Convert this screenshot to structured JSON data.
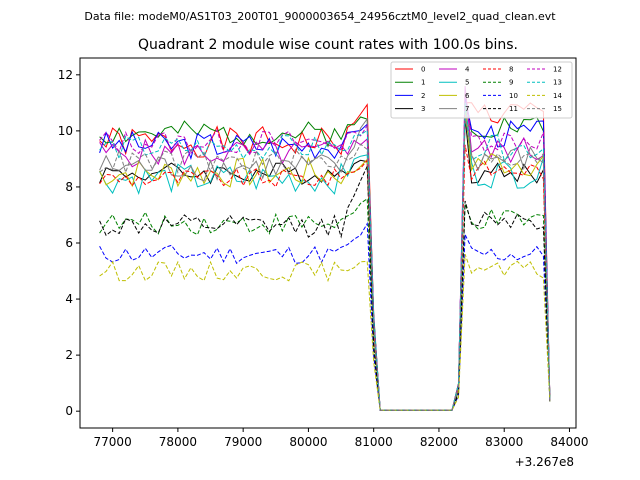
{
  "chart_data": {
    "type": "line",
    "suptitle": "Data file: modeM0/AS1T03_200T01_9000003654_24956cztM0_level2_quad_clean.evt",
    "title": "Quadrant 2 module wise count rates with 100.0s bins.",
    "xlabel": "",
    "ylabel": "",
    "x_offset_label": "+3.267e8",
    "xlim": [
      76500,
      84100
    ],
    "ylim": [
      -0.6,
      12.6
    ],
    "xticks": [
      77000,
      78000,
      79000,
      80000,
      81000,
      82000,
      83000,
      84000
    ],
    "yticks": [
      0,
      2,
      4,
      6,
      8,
      10,
      12
    ],
    "grid": false,
    "legend_position": "top-right",
    "legend_columns": 4,
    "x_segments": [
      {
        "start": 76800,
        "end": 80900,
        "step": 100
      },
      {
        "start": 81000,
        "end": 81100,
        "step": 100
      },
      {
        "start": 82200,
        "end": 82300,
        "step": 100
      },
      {
        "start": 82400,
        "end": 83700,
        "step": 100
      }
    ],
    "zero_gap": {
      "start": 81100,
      "end": 82200
    },
    "series": [
      {
        "name": "0",
        "color": "#ff0000",
        "dash": "solid",
        "base": 9.6,
        "seed": 1,
        "var": 0.55,
        "end_level": 11.2,
        "peak": 11.0,
        "post": 10.6
      },
      {
        "name": "1",
        "color": "#008000",
        "dash": "solid",
        "base": 9.9,
        "seed": 2,
        "var": 0.45,
        "end_level": 10.6,
        "peak": 11.0,
        "post": 10.2
      },
      {
        "name": "2",
        "color": "#0000ff",
        "dash": "solid",
        "base": 9.5,
        "seed": 3,
        "var": 0.5,
        "end_level": 10.4,
        "peak": 11.2,
        "post": 9.9
      },
      {
        "name": "3",
        "color": "#000000",
        "dash": "solid",
        "base": 8.5,
        "seed": 4,
        "var": 0.4,
        "end_level": 9.0,
        "peak": 10.5,
        "post": 8.5
      },
      {
        "name": "4",
        "color": "#bf00bf",
        "dash": "solid",
        "base": 9.2,
        "seed": 5,
        "var": 0.5,
        "end_level": 9.8,
        "peak": 11.6,
        "post": 9.3
      },
      {
        "name": "5",
        "color": "#00bfbf",
        "dash": "solid",
        "base": 8.3,
        "seed": 6,
        "var": 0.55,
        "end_level": 9.2,
        "peak": 10.6,
        "post": 8.5
      },
      {
        "name": "6",
        "color": "#bfbf00",
        "dash": "solid",
        "base": 8.5,
        "seed": 7,
        "var": 0.55,
        "end_level": 9.0,
        "peak": 10.8,
        "post": 8.9
      },
      {
        "name": "7",
        "color": "#808080",
        "dash": "solid",
        "base": 8.7,
        "seed": 8,
        "var": 0.5,
        "end_level": 10.4,
        "peak": 11.0,
        "post": 9.0
      },
      {
        "name": "8",
        "color": "#ff0000",
        "dash": "dashed",
        "base": 8.3,
        "seed": 9,
        "var": 0.35,
        "end_level": 8.9,
        "peak": 9.5,
        "post": 8.6
      },
      {
        "name": "9",
        "color": "#008000",
        "dash": "dashed",
        "base": 6.7,
        "seed": 10,
        "var": 0.4,
        "end_level": 7.5,
        "peak": 7.4,
        "post": 6.8
      },
      {
        "name": "10",
        "color": "#0000ff",
        "dash": "dashed",
        "base": 5.6,
        "seed": 11,
        "var": 0.35,
        "end_level": 6.6,
        "peak": 6.3,
        "post": 5.6
      },
      {
        "name": "11",
        "color": "#000000",
        "dash": "dashed",
        "base": 6.6,
        "seed": 12,
        "var": 0.4,
        "end_level": 8.6,
        "peak": 7.5,
        "post": 6.9
      },
      {
        "name": "12",
        "color": "#bf00bf",
        "dash": "dashed",
        "base": 9.6,
        "seed": 13,
        "var": 0.45,
        "end_level": 10.0,
        "peak": 11.4,
        "post": 9.7
      },
      {
        "name": "13",
        "color": "#00bfbf",
        "dash": "dashed",
        "base": 9.4,
        "seed": 14,
        "var": 0.45,
        "end_level": 9.8,
        "peak": 11.0,
        "post": 9.4
      },
      {
        "name": "14",
        "color": "#bfbf00",
        "dash": "dashed",
        "base": 5.0,
        "seed": 15,
        "var": 0.35,
        "end_level": 5.5,
        "peak": 5.6,
        "post": 5.0
      },
      {
        "name": "15",
        "color": "#808080",
        "dash": "dashed",
        "base": 8.9,
        "seed": 16,
        "var": 0.45,
        "end_level": 9.5,
        "peak": 10.5,
        "post": 8.9
      }
    ]
  }
}
